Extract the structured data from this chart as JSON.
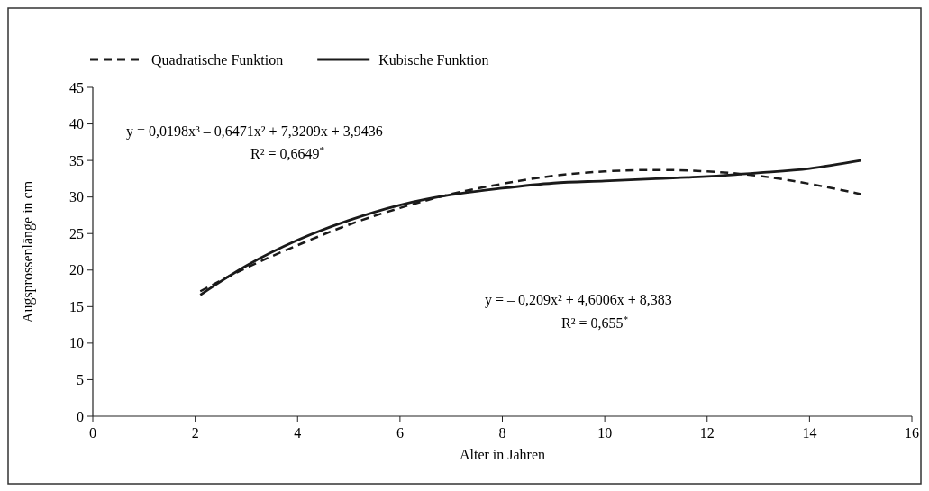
{
  "chart_data": {
    "type": "line",
    "xlabel": "Alter in Jahren",
    "ylabel": "Augsprossenlänge in cm",
    "xlim": [
      0,
      16
    ],
    "xticks": [
      0,
      2,
      4,
      6,
      8,
      10,
      12,
      14,
      16
    ],
    "ylim": [
      0,
      45
    ],
    "yticks": [
      0,
      5,
      10,
      15,
      20,
      25,
      30,
      35,
      40,
      45
    ],
    "x": [
      2.1,
      3,
      4,
      5,
      6,
      7,
      8,
      9,
      10,
      11,
      12,
      13,
      14,
      15
    ],
    "series": [
      {
        "name": "Quadratische Funktion",
        "color": "#1a1a1a",
        "line_style": "dashed",
        "values": [
          17.1,
          20.3,
          23.4,
          26.2,
          28.5,
          30.4,
          31.8,
          32.9,
          33.5,
          33.7,
          33.5,
          32.9,
          31.8,
          30.4
        ]
      },
      {
        "name": "Kubische Funktion",
        "color": "#1a1a1a",
        "line_style": "solid",
        "values": [
          16.6,
          20.6,
          24.1,
          26.8,
          28.9,
          30.3,
          31.2,
          31.9,
          32.2,
          32.5,
          32.8,
          33.3,
          33.9,
          35.0
        ]
      }
    ],
    "annotations": [
      "y = 0,0198x³ – 0,6471x² + 7,3209x + 3,9436",
      "R² = 0,6649$^{*}$",
      "y = – 0,209x² + 4,6006x + 8,383",
      "R² = 0,655$^{*}$"
    ],
    "legend": "top left",
    "grid": false,
    "marker": "none"
  }
}
